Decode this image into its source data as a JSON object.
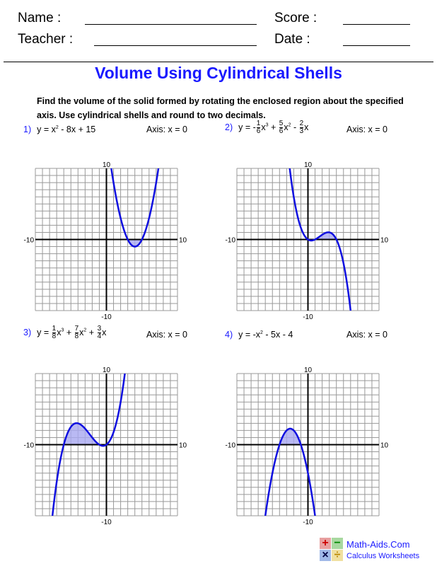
{
  "header": {
    "name_label": "Name :",
    "score_label": "Score :",
    "teacher_label": "Teacher :",
    "date_label": "Date :"
  },
  "title": "Volume Using Cylindrical Shells",
  "instructions": "Find the volume of the solid formed by rotating the enclosed region about the specified axis. Use cylindrical shells and round to two decimals.",
  "problems": [
    {
      "num": "1)",
      "eq_parts": [
        "y = x",
        "2",
        " - 8x + 15"
      ],
      "axis": "Axis: x = 0"
    },
    {
      "num": "2)",
      "eq": {
        "a": "y = -",
        "f1": [
          "1",
          "6"
        ],
        "t1": "x",
        "e1": "3",
        "b": " + ",
        "f2": [
          "5",
          "6"
        ],
        "t2": "x",
        "e2": "2",
        "c": " - ",
        "f3": [
          "2",
          "3"
        ],
        "t3": "x"
      },
      "axis": "Axis: x = 0"
    },
    {
      "num": "3)",
      "eq": {
        "a": "y = ",
        "f1": [
          "1",
          "8"
        ],
        "t1": "x",
        "e1": "3",
        "b": " + ",
        "f2": [
          "7",
          "8"
        ],
        "t2": "x",
        "e2": "2",
        "c": " + ",
        "f3": [
          "3",
          "4"
        ],
        "t3": "x"
      },
      "axis": "Axis: x = 0"
    },
    {
      "num": "4)",
      "eq_parts": [
        "y = -x",
        "2",
        " - 5x - 4"
      ],
      "axis": "Axis: x = 0"
    }
  ],
  "chart_data": [
    {
      "type": "line",
      "coeffs": [
        1,
        -8,
        15
      ],
      "shade": [
        3,
        5
      ],
      "xlim": [
        -10,
        10
      ],
      "ylim": [
        -10,
        10
      ],
      "tick_labels": {
        "top": "10",
        "bottom": "-10",
        "left": "-10",
        "right": "10"
      },
      "grid": true
    },
    {
      "type": "line",
      "coeffs": [
        -0.16667,
        0.83333,
        -0.66667,
        0
      ],
      "shade": [
        1,
        4
      ],
      "xlim": [
        -10,
        10
      ],
      "ylim": [
        -10,
        10
      ],
      "tick_labels": {
        "top": "10",
        "bottom": "-10",
        "left": "-10",
        "right": "10"
      },
      "grid": true
    },
    {
      "type": "line",
      "coeffs": [
        0.125,
        0.875,
        0.75,
        0
      ],
      "shade": [
        -6,
        -1
      ],
      "xlim": [
        -10,
        10
      ],
      "ylim": [
        -10,
        10
      ],
      "tick_labels": {
        "top": "10",
        "bottom": "-10",
        "left": "-10",
        "right": "10"
      },
      "grid": true
    },
    {
      "type": "line",
      "coeffs": [
        -1,
        -5,
        -4
      ],
      "shade": [
        -4,
        -1
      ],
      "xlim": [
        -10,
        10
      ],
      "ylim": [
        -10,
        10
      ],
      "tick_labels": {
        "top": "10",
        "bottom": "-10",
        "left": "-10",
        "right": "10"
      },
      "grid": true
    }
  ],
  "logo": {
    "site": "Math-Aids.Com",
    "subtitle": "Calculus Worksheets",
    "symbols": [
      "+",
      "−",
      "×",
      "÷"
    ]
  },
  "colors": {
    "accent": "#1a1aff",
    "curve": "#1010e0",
    "shade": "#a8a8f0"
  }
}
